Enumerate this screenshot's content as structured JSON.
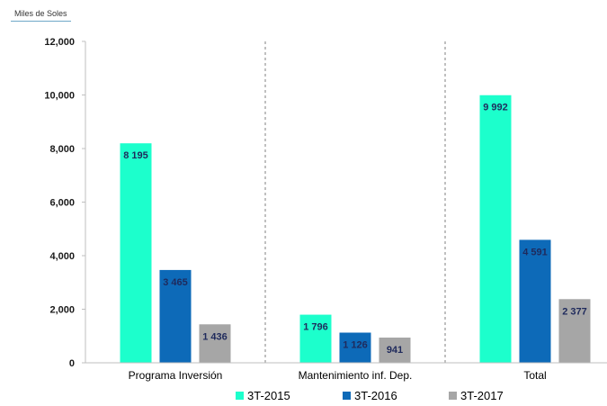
{
  "unit_label": "Miles de Soles",
  "colors": {
    "s2015": "#1cffcc",
    "s2016": "#0d6ab8",
    "s2017": "#a6a6a6",
    "label": "#1f2a5c"
  },
  "chart_data": {
    "type": "bar",
    "title": "",
    "xlabel": "",
    "ylabel": "Miles de Soles",
    "categories": [
      "Programa Inversión",
      "Mantenimiento inf. Dep.",
      "Total"
    ],
    "series": [
      {
        "name": "3T-2015",
        "values": [
          8195,
          1796,
          9992
        ],
        "labels": [
          "8 195",
          "1 796",
          "9 992"
        ]
      },
      {
        "name": "3T-2016",
        "values": [
          3465,
          1126,
          4591
        ],
        "labels": [
          "3 465",
          "1 126",
          "4 591"
        ]
      },
      {
        "name": "3T-2017",
        "values": [
          1436,
          941,
          2377
        ],
        "labels": [
          "1 436",
          "941",
          "2 377"
        ]
      }
    ],
    "ylim": [
      0,
      12000
    ],
    "yticks": [
      "0",
      "2,000",
      "4,000",
      "6,000",
      "8,000",
      "10,000",
      "12,000"
    ],
    "grid": false,
    "category_separators": "dashed",
    "legend": "bottom"
  }
}
